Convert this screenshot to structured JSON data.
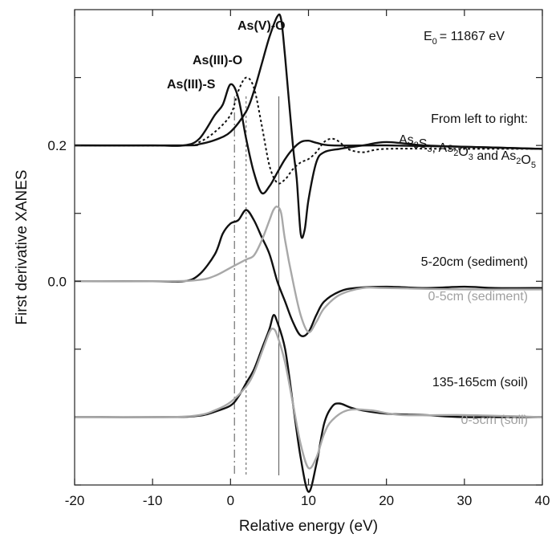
{
  "chart_data": {
    "type": "line",
    "xlabel": "Relative energy (eV)",
    "ylabel": "First derivative XANES",
    "xlim": [
      -20,
      40
    ],
    "ylim": [
      -0.3,
      0.4
    ],
    "x_ticks": [
      -20,
      -10,
      0,
      10,
      20,
      30,
      40
    ],
    "y_tick_labels": [
      {
        "value": 0.2,
        "label": "0.2"
      },
      {
        "value": 0.0,
        "label": "0.0"
      }
    ],
    "y_minor_ticks": [
      0.3,
      0.1,
      -0.1,
      -0.3
    ],
    "annotations": {
      "e0": {
        "label": "E",
        "sub": "0",
        "value": "= 11867 eV"
      },
      "peak_as5": "As(V)-O",
      "peak_as3o": "As(III)-O",
      "peak_as3s": "As(III)-S",
      "refs_line1": "From left to right:",
      "refs_line2": [
        {
          "t": "As"
        },
        {
          "t": "2",
          "sub": true
        },
        {
          "t": "S"
        },
        {
          "t": "3",
          "sub": true
        },
        {
          "t": ", As"
        },
        {
          "t": "2",
          "sub": true
        },
        {
          "t": "O"
        },
        {
          "t": "3",
          "sub": true
        },
        {
          "t": " and As"
        },
        {
          "t": "2",
          "sub": true
        },
        {
          "t": "O"
        },
        {
          "t": "5",
          "sub": true
        }
      ]
    },
    "reference_lines": [
      {
        "x": 0.5,
        "style": "dashdot"
      },
      {
        "x": 2.0,
        "style": "dotted"
      },
      {
        "x": 6.2,
        "style": "solid"
      }
    ],
    "series": [
      {
        "label_text": "",
        "style": "black-solid",
        "points": [
          [
            -20,
            0.2
          ],
          [
            -10,
            0.2
          ],
          [
            -6,
            0.2
          ],
          [
            -4,
            0.21
          ],
          [
            -2,
            0.245
          ],
          [
            -1,
            0.26
          ],
          [
            0,
            0.29
          ],
          [
            1,
            0.27
          ],
          [
            2,
            0.21
          ],
          [
            3,
            0.16
          ],
          [
            4,
            0.13
          ],
          [
            5,
            0.14
          ],
          [
            6,
            0.16
          ],
          [
            7,
            0.18
          ],
          [
            8,
            0.195
          ],
          [
            9,
            0.205
          ],
          [
            10,
            0.207
          ],
          [
            11,
            0.204
          ],
          [
            13,
            0.2
          ],
          [
            20,
            0.2
          ],
          [
            30,
            0.198
          ],
          [
            40,
            0.195
          ]
        ]
      },
      {
        "label_text": "",
        "style": "black-dotted",
        "points": [
          [
            -20,
            0.2
          ],
          [
            -6,
            0.2
          ],
          [
            -4,
            0.205
          ],
          [
            -2,
            0.22
          ],
          [
            0,
            0.245
          ],
          [
            1,
            0.28
          ],
          [
            2,
            0.3
          ],
          [
            3,
            0.285
          ],
          [
            4,
            0.23
          ],
          [
            5,
            0.17
          ],
          [
            6,
            0.145
          ],
          [
            7,
            0.15
          ],
          [
            8,
            0.165
          ],
          [
            9,
            0.175
          ],
          [
            10,
            0.18
          ],
          [
            11,
            0.19
          ],
          [
            12,
            0.205
          ],
          [
            13,
            0.21
          ],
          [
            14,
            0.205
          ],
          [
            15,
            0.195
          ],
          [
            17,
            0.19
          ],
          [
            20,
            0.195
          ],
          [
            30,
            0.195
          ],
          [
            40,
            0.195
          ]
        ]
      },
      {
        "label_text": "",
        "style": "black-solid",
        "points": [
          [
            -20,
            0.2
          ],
          [
            -6,
            0.2
          ],
          [
            -4,
            0.202
          ],
          [
            -2,
            0.208
          ],
          [
            0,
            0.22
          ],
          [
            2,
            0.25
          ],
          [
            3,
            0.28
          ],
          [
            4,
            0.32
          ],
          [
            5,
            0.36
          ],
          [
            6,
            0.39
          ],
          [
            6.5,
            0.385
          ],
          [
            7,
            0.33
          ],
          [
            8,
            0.2
          ],
          [
            8.5,
            0.15
          ],
          [
            9,
            0.07
          ],
          [
            9.5,
            0.075
          ],
          [
            10,
            0.12
          ],
          [
            11,
            0.175
          ],
          [
            12,
            0.19
          ],
          [
            14,
            0.195
          ],
          [
            17,
            0.2
          ],
          [
            20,
            0.205
          ],
          [
            25,
            0.2
          ],
          [
            30,
            0.198
          ],
          [
            40,
            0.195
          ]
        ]
      },
      {
        "label_text": "5-20cm (sediment)",
        "style": "black-solid",
        "points": [
          [
            -20,
            0.0
          ],
          [
            -10,
            0.0
          ],
          [
            -6,
            0.0
          ],
          [
            -4,
            0.01
          ],
          [
            -2,
            0.04
          ],
          [
            -1,
            0.07
          ],
          [
            0,
            0.085
          ],
          [
            1,
            0.09
          ],
          [
            2,
            0.105
          ],
          [
            3,
            0.09
          ],
          [
            4,
            0.065
          ],
          [
            5,
            0.04
          ],
          [
            6,
            0.0
          ],
          [
            7,
            -0.03
          ],
          [
            8,
            -0.06
          ],
          [
            9,
            -0.08
          ],
          [
            10,
            -0.075
          ],
          [
            11,
            -0.05
          ],
          [
            12,
            -0.03
          ],
          [
            14,
            -0.015
          ],
          [
            16,
            -0.01
          ],
          [
            20,
            -0.008
          ],
          [
            25,
            -0.01
          ],
          [
            30,
            -0.008
          ],
          [
            34,
            -0.01
          ],
          [
            40,
            -0.01
          ]
        ]
      },
      {
        "label_text": "0-5cm (sediment)",
        "style": "gray-solid",
        "points": [
          [
            -20,
            0.0
          ],
          [
            -8,
            0.0
          ],
          [
            -4,
            0.002
          ],
          [
            -2,
            0.008
          ],
          [
            0,
            0.02
          ],
          [
            2,
            0.032
          ],
          [
            3,
            0.038
          ],
          [
            4,
            0.06
          ],
          [
            5,
            0.09
          ],
          [
            5.5,
            0.105
          ],
          [
            6,
            0.11
          ],
          [
            6.5,
            0.1
          ],
          [
            7,
            0.06
          ],
          [
            8,
            0.0
          ],
          [
            9,
            -0.05
          ],
          [
            10,
            -0.075
          ],
          [
            11,
            -0.06
          ],
          [
            12,
            -0.04
          ],
          [
            14,
            -0.02
          ],
          [
            17,
            -0.01
          ],
          [
            20,
            -0.01
          ],
          [
            30,
            -0.012
          ],
          [
            40,
            -0.012
          ]
        ]
      },
      {
        "label_text": "135-165cm (soil)",
        "style": "black-solid",
        "points": [
          [
            -20,
            -0.2
          ],
          [
            -8,
            -0.2
          ],
          [
            -4,
            -0.198
          ],
          [
            -2,
            -0.192
          ],
          [
            0,
            -0.183
          ],
          [
            1,
            -0.17
          ],
          [
            2,
            -0.15
          ],
          [
            3,
            -0.13
          ],
          [
            4,
            -0.1
          ],
          [
            5,
            -0.07
          ],
          [
            5.5,
            -0.05
          ],
          [
            6,
            -0.06
          ],
          [
            7,
            -0.1
          ],
          [
            8,
            -0.18
          ],
          [
            9,
            -0.26
          ],
          [
            10,
            -0.31
          ],
          [
            11,
            -0.27
          ],
          [
            12,
            -0.21
          ],
          [
            13,
            -0.185
          ],
          [
            14,
            -0.18
          ],
          [
            16,
            -0.188
          ],
          [
            20,
            -0.195
          ],
          [
            25,
            -0.197
          ],
          [
            30,
            -0.2
          ],
          [
            40,
            -0.2
          ]
        ]
      },
      {
        "label_text": "0-5cm (soil)",
        "style": "gray-solid",
        "points": [
          [
            -20,
            -0.2
          ],
          [
            -8,
            -0.2
          ],
          [
            -4,
            -0.197
          ],
          [
            -2,
            -0.19
          ],
          [
            0,
            -0.178
          ],
          [
            2,
            -0.155
          ],
          [
            3,
            -0.135
          ],
          [
            4,
            -0.105
          ],
          [
            5,
            -0.075
          ],
          [
            5.5,
            -0.07
          ],
          [
            6,
            -0.08
          ],
          [
            7,
            -0.12
          ],
          [
            8,
            -0.18
          ],
          [
            9,
            -0.24
          ],
          [
            10,
            -0.275
          ],
          [
            11,
            -0.26
          ],
          [
            12,
            -0.225
          ],
          [
            13,
            -0.205
          ],
          [
            15,
            -0.19
          ],
          [
            18,
            -0.19
          ],
          [
            22,
            -0.197
          ],
          [
            30,
            -0.197
          ],
          [
            40,
            -0.2
          ]
        ]
      }
    ]
  }
}
